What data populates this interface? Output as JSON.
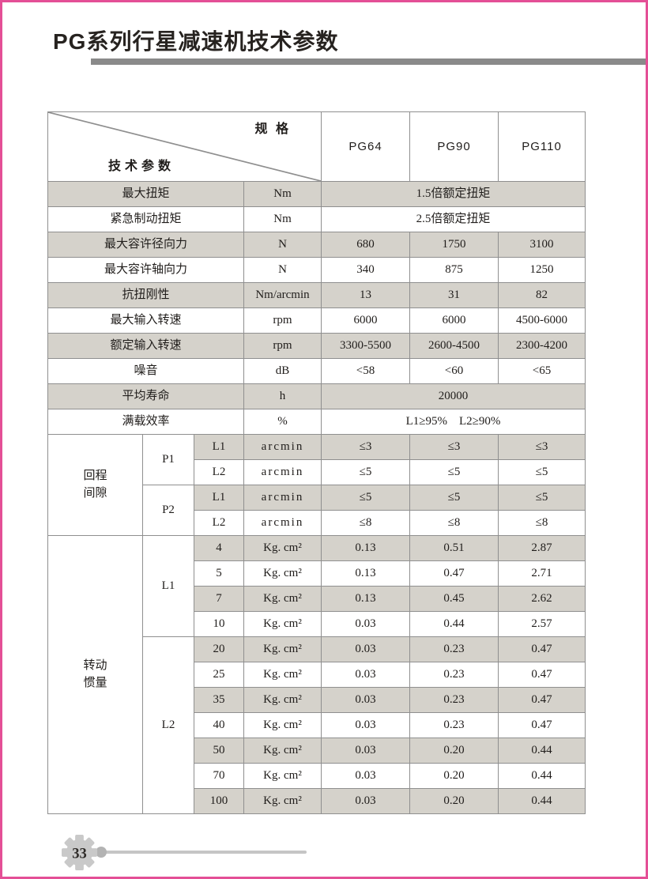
{
  "page": {
    "title": "PG系列行星减速机技术参数",
    "border_color": "#e44f96",
    "accent_bar_color": "#8a8a8a",
    "shade_color": "#d5d2cb"
  },
  "footer": {
    "page_number": "33",
    "gear_icon_color": "#c9c9c9"
  },
  "table": {
    "corner": {
      "top_label": "规 格",
      "bottom_label": "技术参数"
    },
    "spec_columns": [
      "PG64",
      "PG90",
      "PG110"
    ],
    "rows": [
      {
        "shaded": true,
        "cells": [
          {
            "t": "最大扭矩",
            "cs": 3
          },
          {
            "t": "Nm"
          },
          {
            "t": "1.5倍额定扭矩",
            "cs": 3
          }
        ]
      },
      {
        "shaded": false,
        "cells": [
          {
            "t": "紧急制动扭矩",
            "cs": 3
          },
          {
            "t": "Nm"
          },
          {
            "t": "2.5倍额定扭矩",
            "cs": 3
          }
        ]
      },
      {
        "shaded": true,
        "cells": [
          {
            "t": "最大容许径向力",
            "cs": 3
          },
          {
            "t": "N"
          },
          {
            "t": "680"
          },
          {
            "t": "1750"
          },
          {
            "t": "3100"
          }
        ]
      },
      {
        "shaded": false,
        "cells": [
          {
            "t": "最大容许轴向力",
            "cs": 3
          },
          {
            "t": "N"
          },
          {
            "t": "340"
          },
          {
            "t": "875"
          },
          {
            "t": "1250"
          }
        ]
      },
      {
        "shaded": true,
        "cells": [
          {
            "t": "抗扭刚性",
            "cs": 3
          },
          {
            "t": "Nm/arcmin"
          },
          {
            "t": "13"
          },
          {
            "t": "31"
          },
          {
            "t": "82"
          }
        ]
      },
      {
        "shaded": false,
        "cells": [
          {
            "t": "最大输入转速",
            "cs": 3
          },
          {
            "t": "rpm"
          },
          {
            "t": "6000"
          },
          {
            "t": "6000"
          },
          {
            "t": "4500-6000"
          }
        ]
      },
      {
        "shaded": true,
        "cells": [
          {
            "t": "额定输入转速",
            "cs": 3
          },
          {
            "t": "rpm"
          },
          {
            "t": "3300-5500"
          },
          {
            "t": "2600-4500"
          },
          {
            "t": "2300-4200"
          }
        ]
      },
      {
        "shaded": false,
        "cells": [
          {
            "t": "噪音",
            "cs": 3
          },
          {
            "t": "dB"
          },
          {
            "t": "<58"
          },
          {
            "t": "<60"
          },
          {
            "t": "<65"
          }
        ]
      },
      {
        "shaded": true,
        "cells": [
          {
            "t": "平均寿命",
            "cs": 3
          },
          {
            "t": "h"
          },
          {
            "t": "20000",
            "cs": 3
          }
        ]
      },
      {
        "shaded": false,
        "cells": [
          {
            "t": "满载效率",
            "cs": 3
          },
          {
            "t": "%"
          },
          {
            "t": "L1≥95%　L2≥90%",
            "cs": 3
          }
        ]
      },
      {
        "shaded": true,
        "cells": [
          {
            "t": "回程\n间隙",
            "rs": 4,
            "plain": true
          },
          {
            "t": "P1",
            "rs": 2,
            "plain": true
          },
          {
            "t": "L1"
          },
          {
            "t": "arcmin"
          },
          {
            "t": "≤3"
          },
          {
            "t": "≤3"
          },
          {
            "t": "≤3"
          }
        ]
      },
      {
        "shaded": false,
        "cells": [
          {
            "t": "L2"
          },
          {
            "t": "arcmin"
          },
          {
            "t": "≤5"
          },
          {
            "t": "≤5"
          },
          {
            "t": "≤5"
          }
        ]
      },
      {
        "shaded": true,
        "cells": [
          {
            "t": "P2",
            "rs": 2,
            "plain": true
          },
          {
            "t": "L1"
          },
          {
            "t": "arcmin"
          },
          {
            "t": "≤5"
          },
          {
            "t": "≤5"
          },
          {
            "t": "≤5"
          }
        ]
      },
      {
        "shaded": false,
        "cells": [
          {
            "t": "L2"
          },
          {
            "t": "arcmin"
          },
          {
            "t": "≤8"
          },
          {
            "t": "≤8"
          },
          {
            "t": "≤8"
          }
        ]
      },
      {
        "shaded": true,
        "cells": [
          {
            "t": "转动\n惯量",
            "rs": 11,
            "plain": true
          },
          {
            "t": "L1",
            "rs": 4,
            "plain": true
          },
          {
            "t": "4"
          },
          {
            "t": "Kg. cm²"
          },
          {
            "t": "0.13"
          },
          {
            "t": "0.51"
          },
          {
            "t": "2.87"
          }
        ]
      },
      {
        "shaded": false,
        "cells": [
          {
            "t": "5"
          },
          {
            "t": "Kg. cm²"
          },
          {
            "t": "0.13"
          },
          {
            "t": "0.47"
          },
          {
            "t": "2.71"
          }
        ]
      },
      {
        "shaded": true,
        "cells": [
          {
            "t": "7"
          },
          {
            "t": "Kg. cm²"
          },
          {
            "t": "0.13"
          },
          {
            "t": "0.45"
          },
          {
            "t": "2.62"
          }
        ]
      },
      {
        "shaded": false,
        "cells": [
          {
            "t": "10"
          },
          {
            "t": "Kg. cm²"
          },
          {
            "t": "0.03"
          },
          {
            "t": "0.44"
          },
          {
            "t": "2.57"
          }
        ]
      },
      {
        "shaded": true,
        "cells": [
          {
            "t": "L2",
            "rs": 7,
            "plain": true
          },
          {
            "t": "20"
          },
          {
            "t": "Kg. cm²"
          },
          {
            "t": "0.03"
          },
          {
            "t": "0.23"
          },
          {
            "t": "0.47"
          }
        ]
      },
      {
        "shaded": false,
        "cells": [
          {
            "t": "25"
          },
          {
            "t": "Kg. cm²"
          },
          {
            "t": "0.03"
          },
          {
            "t": "0.23"
          },
          {
            "t": "0.47"
          }
        ]
      },
      {
        "shaded": true,
        "cells": [
          {
            "t": "35"
          },
          {
            "t": "Kg. cm²"
          },
          {
            "t": "0.03"
          },
          {
            "t": "0.23"
          },
          {
            "t": "0.47"
          }
        ]
      },
      {
        "shaded": false,
        "cells": [
          {
            "t": "40"
          },
          {
            "t": "Kg. cm²"
          },
          {
            "t": "0.03"
          },
          {
            "t": "0.23"
          },
          {
            "t": "0.47"
          }
        ]
      },
      {
        "shaded": true,
        "cells": [
          {
            "t": "50"
          },
          {
            "t": "Kg. cm²"
          },
          {
            "t": "0.03"
          },
          {
            "t": "0.20"
          },
          {
            "t": "0.44"
          }
        ]
      },
      {
        "shaded": false,
        "cells": [
          {
            "t": "70"
          },
          {
            "t": "Kg. cm²"
          },
          {
            "t": "0.03"
          },
          {
            "t": "0.20"
          },
          {
            "t": "0.44"
          }
        ]
      },
      {
        "shaded": true,
        "cells": [
          {
            "t": "100"
          },
          {
            "t": "Kg. cm²"
          },
          {
            "t": "0.03"
          },
          {
            "t": "0.20"
          },
          {
            "t": "0.44"
          }
        ]
      }
    ]
  }
}
